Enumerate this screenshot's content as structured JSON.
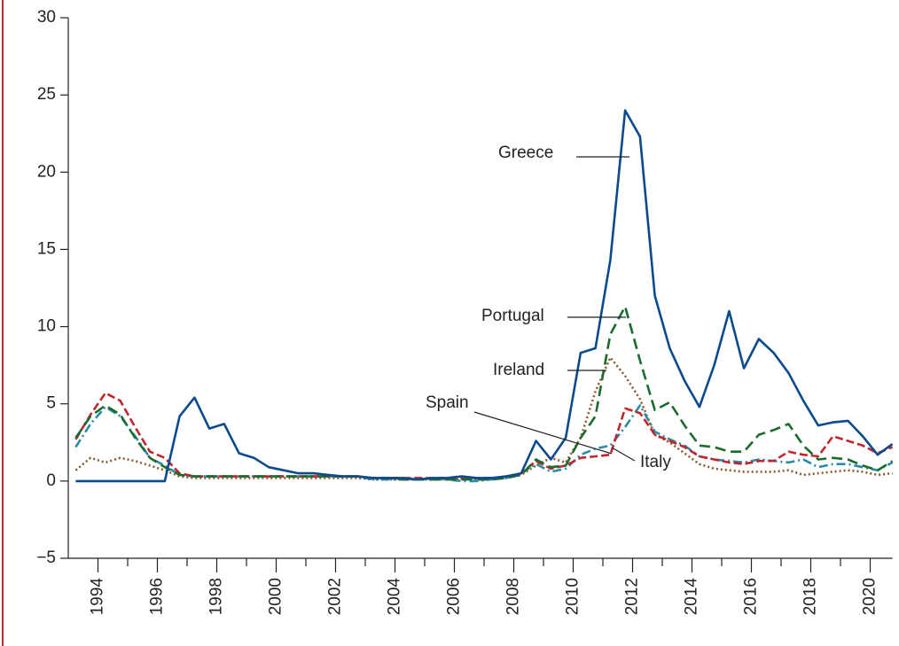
{
  "chart_data": {
    "type": "line",
    "x": [
      1993.25,
      1993.75,
      1994.25,
      1994.75,
      1995.25,
      1995.75,
      1996.25,
      1996.75,
      1997.25,
      1997.75,
      1998.25,
      1998.75,
      1999.25,
      1999.75,
      2000.25,
      2000.75,
      2001.25,
      2001.75,
      2002.25,
      2002.75,
      2003.25,
      2003.75,
      2004.25,
      2004.75,
      2005.25,
      2005.75,
      2006.25,
      2006.75,
      2007.25,
      2007.75,
      2008.25,
      2008.75,
      2009.25,
      2009.75,
      2010.25,
      2010.75,
      2011.25,
      2011.75,
      2012.25,
      2012.75,
      2013.25,
      2013.75,
      2014.25,
      2014.75,
      2015.25,
      2015.75,
      2016.25,
      2016.75,
      2017.25,
      2017.75,
      2018.25,
      2018.75,
      2019.25,
      2019.75,
      2020.25,
      2020.75
    ],
    "series": [
      {
        "name": "Greece",
        "color": "#0b4a8c",
        "dash": "",
        "values": [
          0,
          0,
          0,
          0,
          0,
          0,
          0,
          4.2,
          5.4,
          3.4,
          3.7,
          1.8,
          1.5,
          0.9,
          0.7,
          0.5,
          0.5,
          0.4,
          0.3,
          0.3,
          0.2,
          0.2,
          0.2,
          0.1,
          0.2,
          0.2,
          0.3,
          0.2,
          0.2,
          0.3,
          0.5,
          2.6,
          1.4,
          2.8,
          8.3,
          8.6,
          14.3,
          24,
          22.3,
          12,
          8.6,
          6.5,
          4.8,
          7.5,
          11,
          7.3,
          9.2,
          8.3,
          7,
          5.2,
          3.6,
          3.8,
          3.9,
          2.9,
          1.7,
          2.4
        ]
      },
      {
        "name": "Portugal",
        "color": "#1a6b2c",
        "dash": "12 6",
        "values": [
          2.8,
          4.2,
          4.9,
          4.3,
          2.8,
          1.5,
          0.9,
          0.4,
          0.3,
          0.3,
          0.3,
          0.3,
          0.3,
          0.3,
          0.3,
          0.3,
          0.3,
          0.3,
          0.3,
          0.3,
          0.2,
          0.2,
          0.1,
          0.1,
          0.1,
          0.1,
          0.1,
          0.1,
          0.1,
          0.2,
          0.4,
          1.4,
          0.9,
          1.0,
          2.8,
          4.2,
          9.5,
          11.3,
          7.8,
          4.6,
          5.1,
          3.6,
          2.3,
          2.2,
          1.9,
          1.9,
          3.0,
          3.3,
          3.7,
          2.3,
          1.4,
          1.5,
          1.4,
          1.0,
          0.7,
          1.3
        ]
      },
      {
        "name": "Ireland",
        "color": "#8b5a2b",
        "dash": "2 3",
        "values": [
          0.7,
          1.5,
          1.2,
          1.5,
          1.3,
          1.0,
          0.7,
          0.3,
          0.2,
          0.2,
          0.2,
          0.2,
          0.2,
          0.2,
          0.2,
          0.2,
          0.2,
          0.2,
          0.2,
          0.2,
          0.1,
          0.1,
          0.1,
          0.1,
          0.1,
          0.1,
          0.1,
          0.1,
          0.1,
          0.2,
          0.4,
          1.0,
          1.5,
          1.2,
          2.8,
          5.8,
          8.0,
          6.8,
          5.3,
          3.0,
          2.5,
          1.8,
          1.1,
          0.8,
          0.7,
          0.6,
          0.6,
          0.6,
          0.7,
          0.4,
          0.5,
          0.6,
          0.7,
          0.6,
          0.4,
          0.5
        ]
      },
      {
        "name": "Spain",
        "color": "#c0262d",
        "dash": "9 4",
        "values": [
          2.7,
          4.3,
          5.7,
          5.2,
          3.5,
          1.9,
          1.5,
          0.5,
          0.3,
          0.3,
          0.3,
          0.3,
          0.3,
          0.3,
          0.3,
          0.3,
          0.3,
          0.3,
          0.3,
          0.3,
          0.2,
          0.2,
          0.2,
          0.2,
          0.2,
          0.2,
          0.2,
          0.2,
          0.2,
          0.3,
          0.5,
          1.3,
          0.8,
          1.0,
          1.5,
          1.6,
          1.7,
          4.7,
          4.4,
          3.0,
          2.6,
          2.2,
          1.6,
          1.4,
          1.2,
          1.1,
          1.3,
          1.3,
          1.9,
          1.7,
          1.6,
          2.9,
          2.6,
          2.3,
          1.8,
          2.2
        ]
      },
      {
        "name": "Italy",
        "color": "#2a8aa8",
        "dash": "10 4 2 4",
        "values": [
          2.2,
          3.7,
          4.8,
          4.2,
          2.9,
          1.5,
          1.0,
          0.4,
          0.3,
          0.3,
          0.3,
          0.3,
          0.3,
          0.3,
          0.3,
          0.3,
          0.3,
          0.3,
          0.3,
          0.3,
          0.1,
          0.1,
          0.1,
          0.1,
          0.1,
          0.1,
          0.0,
          0.0,
          0.1,
          0.2,
          0.5,
          1.1,
          0.6,
          0.8,
          1.7,
          2.1,
          2.3,
          3.5,
          4.9,
          3.2,
          2.7,
          2.3,
          1.6,
          1.4,
          1.3,
          1.2,
          1.4,
          1.3,
          1.2,
          1.4,
          0.9,
          1.1,
          1.1,
          0.9,
          0.7,
          1.2
        ]
      }
    ],
    "xlim": [
      1993,
      2020.75
    ],
    "xticks": [
      1994,
      1996,
      1998,
      2000,
      2002,
      2004,
      2006,
      2008,
      2010,
      2012,
      2014,
      2016,
      2018,
      2020
    ],
    "xticks_minor": [
      1995,
      1997,
      1999,
      2001,
      2003,
      2005,
      2007,
      2009,
      2011,
      2013,
      2015,
      2017,
      2019
    ],
    "ylim": [
      -5,
      30
    ],
    "yticks": [
      {
        "value": -5,
        "label": "−5"
      },
      0,
      5,
      10,
      15,
      20,
      25,
      30
    ]
  }
}
